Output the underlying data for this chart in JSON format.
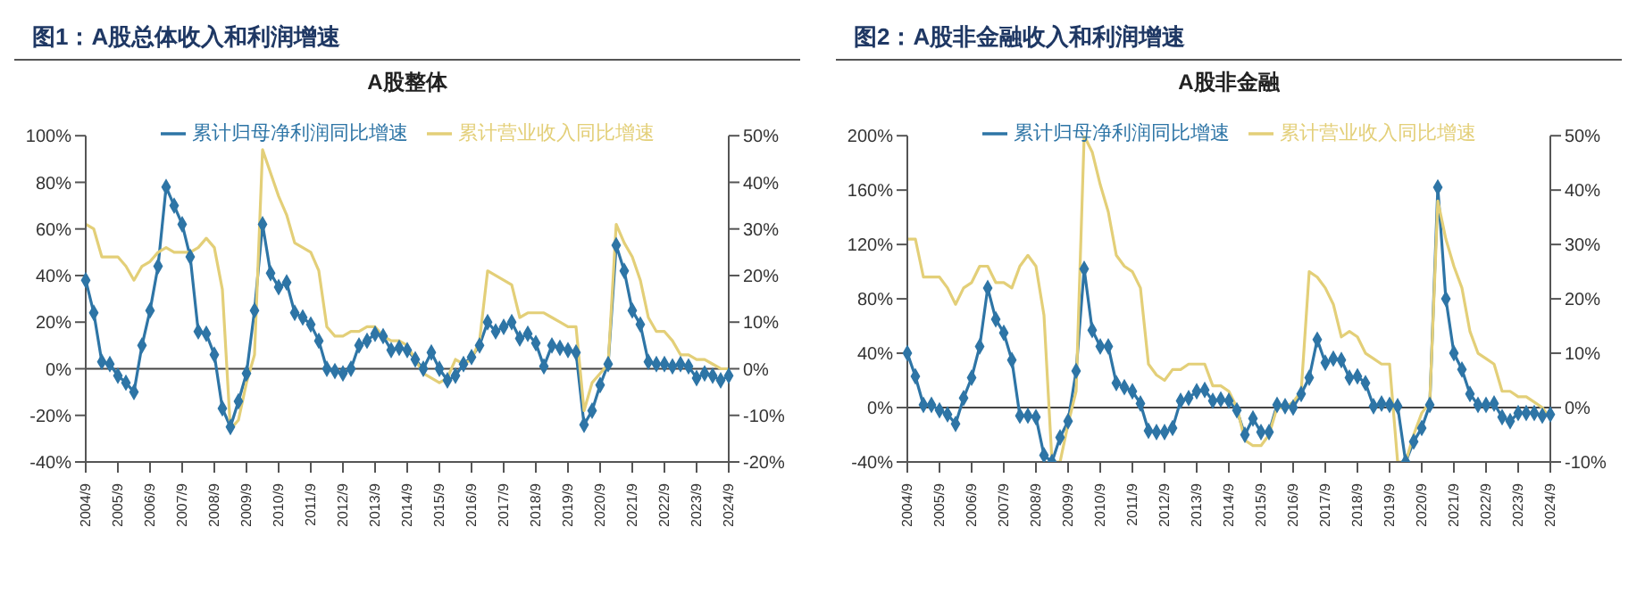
{
  "chart_data": [
    {
      "type": "line",
      "title": "图1：A股总体收入和利润增速",
      "subtitle": "A股整体",
      "legend": "top",
      "grid": false,
      "ref_lines": [
        {
          "axis": "y",
          "value": 0
        }
      ],
      "categories": [
        "2004/9",
        null,
        null,
        null,
        "2005/9",
        null,
        null,
        null,
        "2006/9",
        null,
        null,
        null,
        "2007/9",
        null,
        null,
        null,
        "2008/9",
        null,
        null,
        null,
        "2009/9",
        null,
        null,
        null,
        "2010/9",
        null,
        null,
        null,
        "2011/9",
        null,
        null,
        null,
        "2012/9",
        null,
        null,
        null,
        "2013/9",
        null,
        null,
        null,
        "2014/9",
        null,
        null,
        null,
        "2015/9",
        null,
        null,
        null,
        "2016/9",
        null,
        null,
        null,
        "2017/9",
        null,
        null,
        null,
        "2018/9",
        null,
        null,
        null,
        "2019/9",
        null,
        null,
        null,
        "2020/9",
        null,
        null,
        null,
        "2021/9",
        null,
        null,
        null,
        "2022/9",
        null,
        null,
        null,
        "2023/9",
        null,
        null,
        null,
        "2024/9"
      ],
      "ylim": [
        -40,
        100
      ],
      "yticks": [
        {
          "value": -40,
          "label": "-40%"
        },
        {
          "value": -20,
          "label": "-20%"
        },
        {
          "value": 0,
          "label": "0%"
        },
        {
          "value": 20,
          "label": "20%"
        },
        {
          "value": 40,
          "label": "40%"
        },
        {
          "value": 60,
          "label": "60%"
        },
        {
          "value": 80,
          "label": "80%"
        },
        {
          "value": 100,
          "label": "100%"
        }
      ],
      "y2lim": [
        -20,
        50
      ],
      "y2ticks": [
        {
          "value": -20,
          "label": "-20%"
        },
        {
          "value": -10,
          "label": "-10%"
        },
        {
          "value": 0,
          "label": "0%"
        },
        {
          "value": 10,
          "label": "10%"
        },
        {
          "value": 20,
          "label": "20%"
        },
        {
          "value": 30,
          "label": "30%"
        },
        {
          "value": 40,
          "label": "40%"
        },
        {
          "value": 50,
          "label": "50%"
        }
      ],
      "series": [
        {
          "name": "累计归母净利润同比增速",
          "color": "#2e75a6",
          "marker": "diamond",
          "values": [
            38,
            24,
            3,
            2,
            -3,
            -6,
            -10,
            10,
            25,
            44,
            78,
            70,
            62,
            48,
            16,
            15,
            6,
            -17,
            -25,
            -14,
            -2,
            25,
            62,
            41,
            35,
            37,
            24,
            22,
            19,
            12,
            0,
            -1,
            -2,
            0,
            10,
            12,
            15,
            14,
            8,
            9,
            8,
            4,
            0,
            7,
            0,
            -5,
            -3,
            2,
            5,
            10,
            20,
            16,
            18,
            20,
            13,
            15,
            11,
            1,
            10,
            9,
            8,
            7,
            -24,
            -18,
            -7,
            2,
            53,
            42,
            25,
            19,
            3,
            2,
            2,
            1,
            2,
            1,
            -4,
            -2,
            -3,
            -5,
            -3
          ]
        },
        {
          "name": "累计营业收入同比增速",
          "color": "#e3cf78",
          "axis": "y2",
          "marker": "none",
          "values": [
            31,
            30,
            24,
            24,
            24,
            22,
            19,
            22,
            23,
            25,
            26,
            25,
            25,
            25,
            26,
            28,
            26,
            17,
            -13,
            -11,
            -3,
            3,
            47,
            42,
            37,
            33,
            27,
            26,
            25,
            21,
            9,
            7,
            7,
            8,
            8,
            9,
            9,
            7,
            6,
            6,
            5,
            2,
            -1,
            -2,
            -3,
            -2,
            2,
            1,
            2,
            6,
            21,
            20,
            19,
            18,
            11,
            12,
            12,
            12,
            11,
            10,
            9,
            9,
            -9,
            -3,
            -1,
            1,
            31,
            27,
            24,
            19,
            11,
            8,
            8,
            6,
            3,
            3,
            2,
            2,
            1,
            0,
            0
          ]
        }
      ]
    },
    {
      "type": "line",
      "title": "图2：A股非金融收入和利润增速",
      "subtitle": "A股非金融",
      "legend": "top",
      "grid": false,
      "ref_lines": [
        {
          "axis": "y",
          "value": 0
        }
      ],
      "categories": [
        "2004/9",
        null,
        null,
        null,
        "2005/9",
        null,
        null,
        null,
        "2006/9",
        null,
        null,
        null,
        "2007/9",
        null,
        null,
        null,
        "2008/9",
        null,
        null,
        null,
        "2009/9",
        null,
        null,
        null,
        "2010/9",
        null,
        null,
        null,
        "2011/9",
        null,
        null,
        null,
        "2012/9",
        null,
        null,
        null,
        "2013/9",
        null,
        null,
        null,
        "2014/9",
        null,
        null,
        null,
        "2015/9",
        null,
        null,
        null,
        "2016/9",
        null,
        null,
        null,
        "2017/9",
        null,
        null,
        null,
        "2018/9",
        null,
        null,
        null,
        "2019/9",
        null,
        null,
        null,
        "2020/9",
        null,
        null,
        null,
        "2021/9",
        null,
        null,
        null,
        "2022/9",
        null,
        null,
        null,
        "2023/9",
        null,
        null,
        null,
        "2024/9"
      ],
      "ylim": [
        -40,
        200
      ],
      "yticks": [
        {
          "value": -40,
          "label": "-40%"
        },
        {
          "value": 0,
          "label": "0%"
        },
        {
          "value": 40,
          "label": "40%"
        },
        {
          "value": 80,
          "label": "80%"
        },
        {
          "value": 120,
          "label": "120%"
        },
        {
          "value": 160,
          "label": "160%"
        },
        {
          "value": 200,
          "label": "200%"
        }
      ],
      "y2lim": [
        -10,
        50
      ],
      "y2ticks": [
        {
          "value": -10,
          "label": "-10%"
        },
        {
          "value": 0,
          "label": "0%"
        },
        {
          "value": 10,
          "label": "10%"
        },
        {
          "value": 20,
          "label": "20%"
        },
        {
          "value": 30,
          "label": "30%"
        },
        {
          "value": 40,
          "label": "40%"
        },
        {
          "value": 50,
          "label": "50%"
        }
      ],
      "series": [
        {
          "name": "累计归母净利润同比增速",
          "color": "#2e75a6",
          "marker": "diamond",
          "values": [
            40,
            23,
            2,
            2,
            -2,
            -5,
            -12,
            7,
            22,
            45,
            88,
            65,
            55,
            35,
            -6,
            -6,
            -7,
            -35,
            -40,
            -22,
            -10,
            27,
            102,
            57,
            45,
            45,
            18,
            15,
            12,
            3,
            -17,
            -18,
            -18,
            -15,
            5,
            7,
            12,
            13,
            5,
            6,
            5,
            -2,
            -20,
            -8,
            -18,
            -18,
            2,
            1,
            0,
            10,
            22,
            50,
            33,
            36,
            35,
            22,
            23,
            18,
            1,
            3,
            2,
            1,
            -40,
            -25,
            -15,
            2,
            162,
            80,
            40,
            28,
            10,
            2,
            2,
            3,
            -7,
            -10,
            -4,
            -4,
            -4,
            -6,
            -5
          ]
        },
        {
          "name": "累计营业收入同比增速",
          "color": "#e3cf78",
          "axis": "y2",
          "marker": "none",
          "values": [
            31,
            31,
            24,
            24,
            24,
            22,
            19,
            22,
            23,
            26,
            26,
            23,
            23,
            22,
            26,
            28,
            26,
            17,
            -10,
            -10,
            -3,
            3,
            50,
            47,
            41,
            36,
            28,
            26,
            25,
            22,
            8,
            6,
            5,
            7,
            7,
            8,
            8,
            8,
            4,
            4,
            3,
            0,
            -6,
            -7,
            -7,
            -5,
            0,
            0,
            1,
            3,
            25,
            24,
            22,
            19,
            13,
            14,
            13,
            10,
            9,
            8,
            8,
            -10,
            -10,
            -5,
            -1,
            1,
            38,
            31,
            26,
            22,
            14,
            10,
            9,
            8,
            3,
            3,
            2,
            2,
            1,
            0,
            -2
          ]
        }
      ]
    }
  ]
}
